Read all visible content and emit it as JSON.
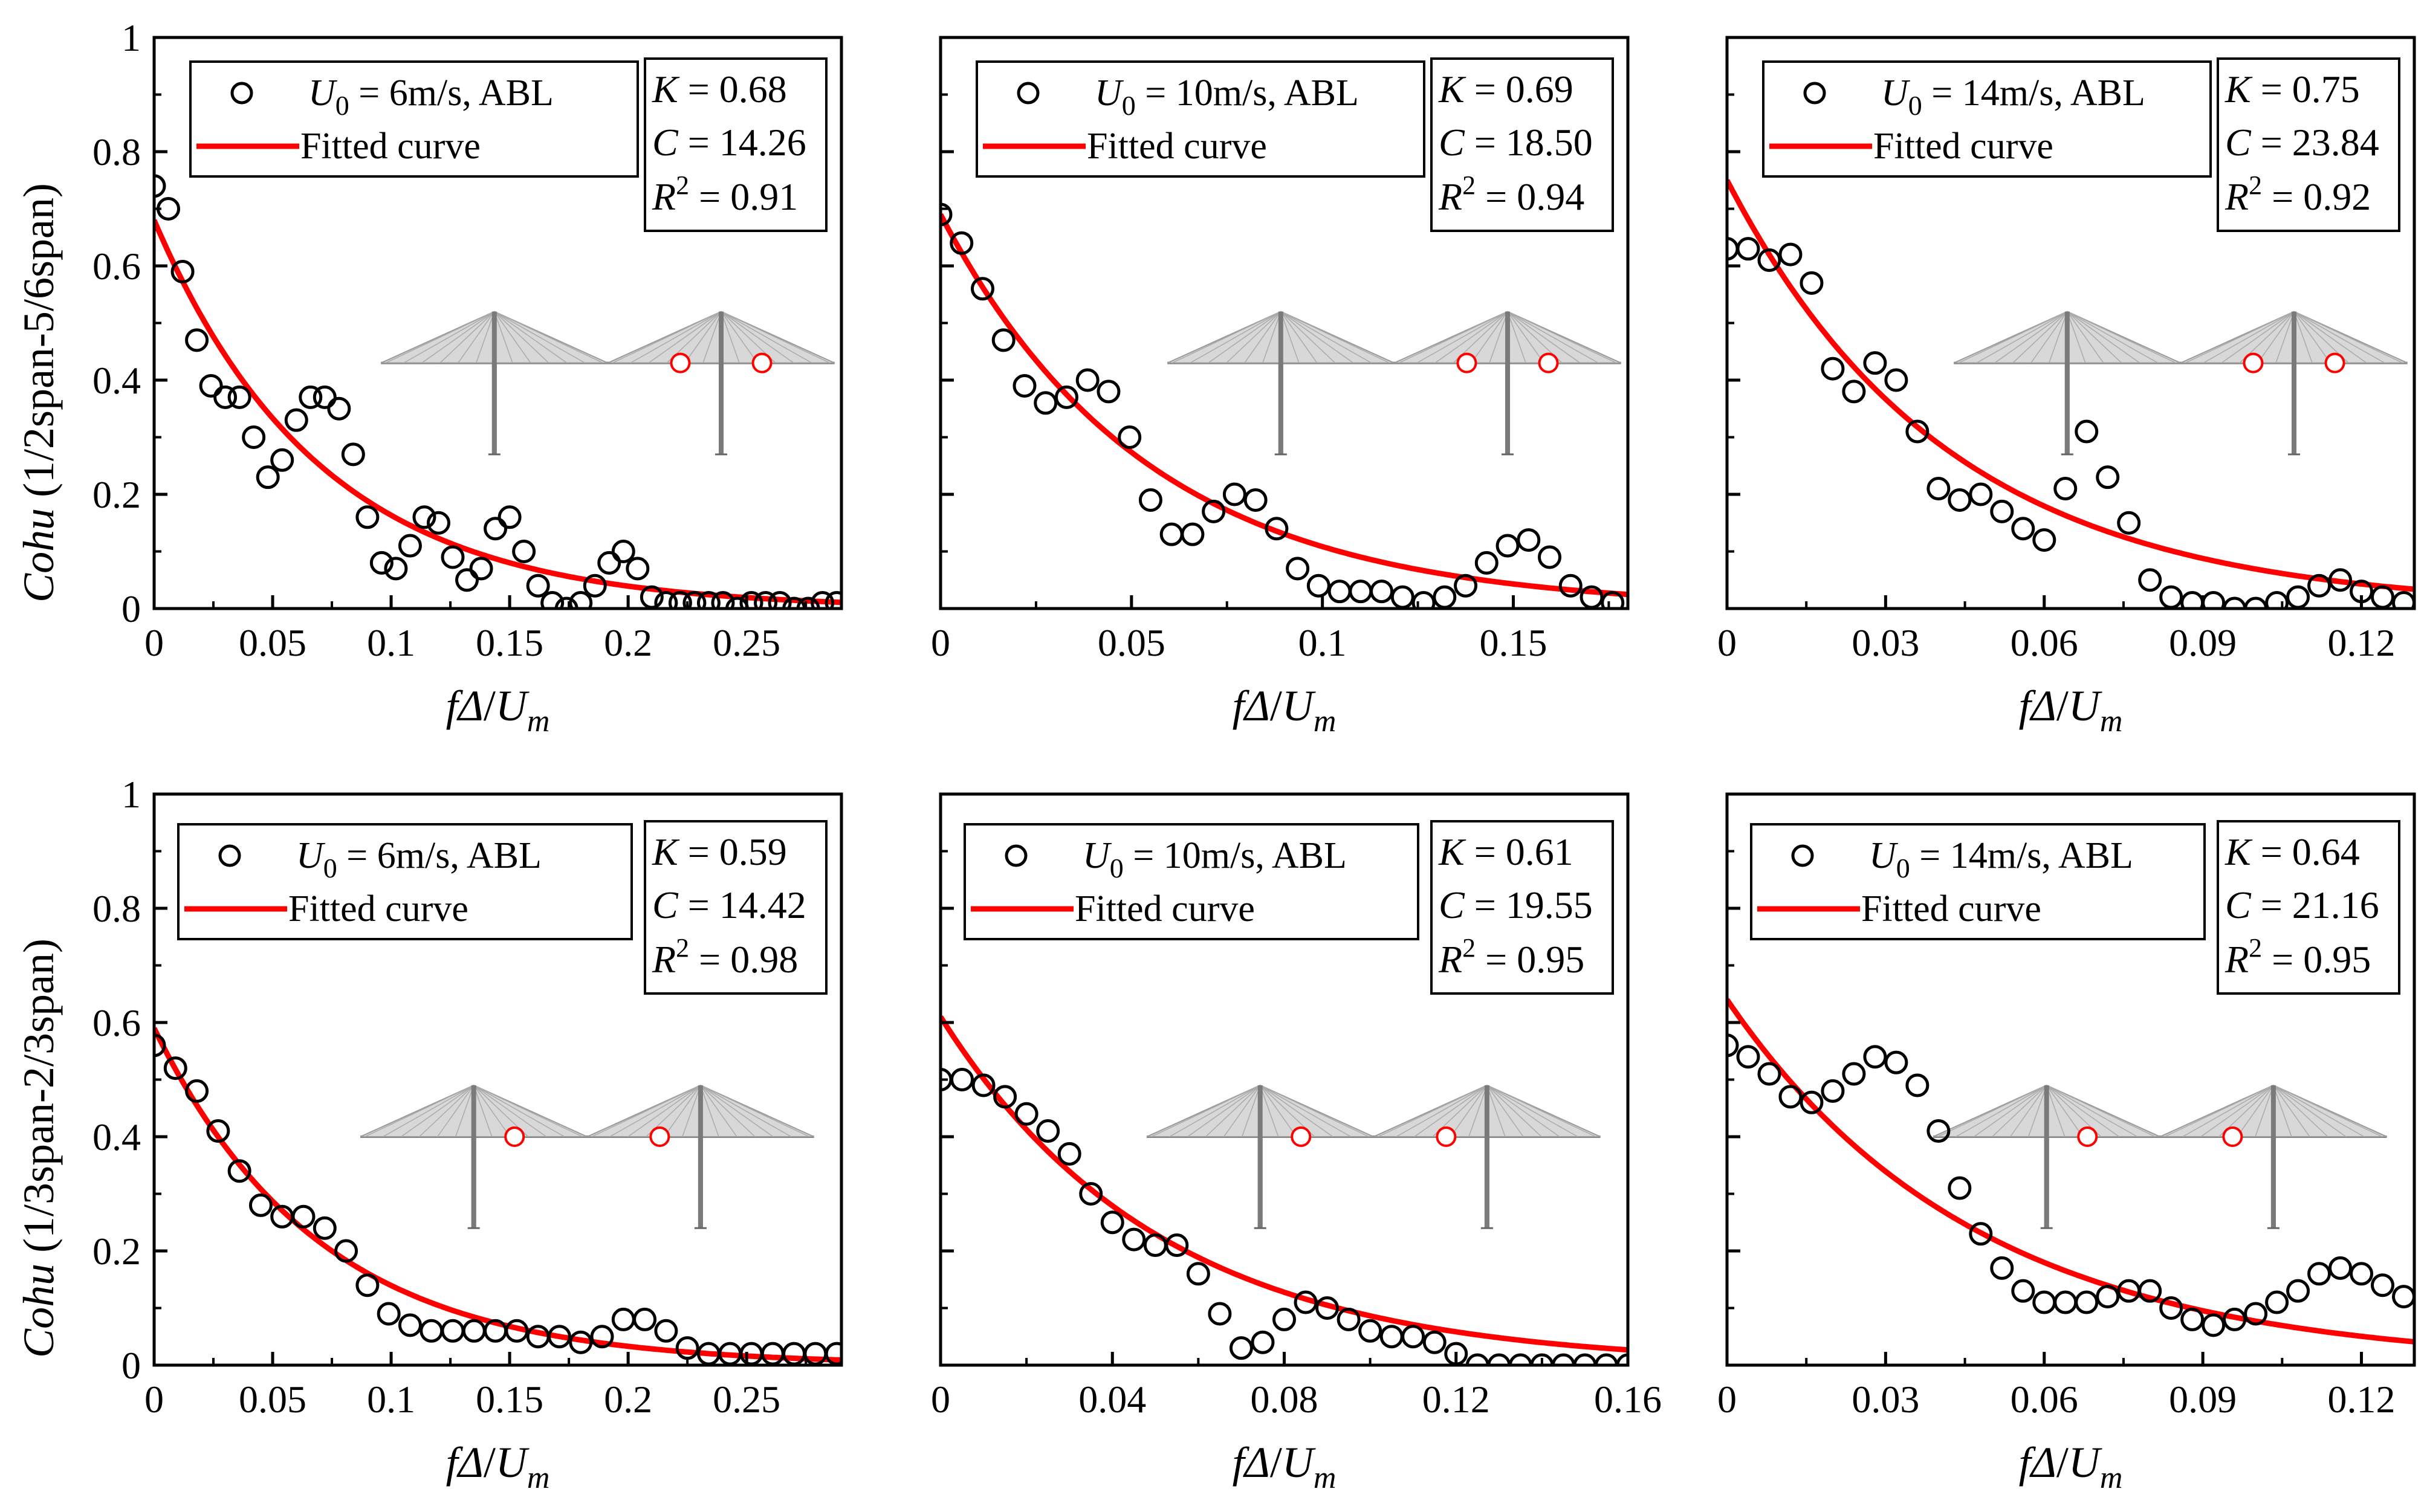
{
  "figure": {
    "xlabel": {
      "f": "f",
      "delta": "Δ",
      "slash": "/",
      "U": "U",
      "sub": "m"
    },
    "legend_marker_label": {
      "U": "U",
      "sub": "0"
    },
    "stat_labels": {
      "K": "K",
      "C": "C",
      "R": "R",
      "sup": "2"
    },
    "colors": {
      "fit": "#ff0000",
      "marker": "#000000",
      "sensor": "#ff0000",
      "bridge": "#9a9a9a"
    },
    "row_ylabels": [
      {
        "italic": "Cohu",
        "rest": " (1/2span-5/6span)"
      },
      {
        "italic": "Cohu",
        "rest": " (1/3span-2/3span)"
      }
    ]
  },
  "chart_data": [
    {
      "type": "scatter",
      "panel": "top-left",
      "legend": {
        "case": " = 6m/s, ABL",
        "fit": "Fitted curve"
      },
      "stats": {
        "K": " = 0.68",
        "C": " = 14.26",
        "R2": " = 0.91"
      },
      "xlim": [
        0,
        0.29
      ],
      "ylim": [
        0,
        1
      ],
      "xticks": [
        0,
        0.05,
        0.1,
        0.15,
        0.2,
        0.25
      ],
      "xtick_labels": [
        "0",
        "0.05",
        "0.1",
        "0.15",
        "0.2",
        "0.25"
      ],
      "yticks": [
        0,
        0.2,
        0.4,
        0.6,
        0.8,
        1
      ],
      "ytick_labels": [
        "0",
        "0.2",
        "0.4",
        "0.6",
        "0.8",
        "1"
      ],
      "fit": {
        "K": 0.68,
        "C": 14.26
      },
      "x": [
        0,
        0.006,
        0.012,
        0.018,
        0.024,
        0.03,
        0.036,
        0.042,
        0.048,
        0.054,
        0.06,
        0.066,
        0.072,
        0.078,
        0.084,
        0.09,
        0.096,
        0.102,
        0.108,
        0.114,
        0.12,
        0.126,
        0.132,
        0.138,
        0.144,
        0.15,
        0.156,
        0.162,
        0.168,
        0.174,
        0.18,
        0.186,
        0.192,
        0.198,
        0.204,
        0.21,
        0.216,
        0.222,
        0.228,
        0.234,
        0.24,
        0.246,
        0.252,
        0.258,
        0.264,
        0.27,
        0.276,
        0.282,
        0.288
      ],
      "y": [
        0.74,
        0.7,
        0.59,
        0.47,
        0.39,
        0.37,
        0.37,
        0.3,
        0.23,
        0.26,
        0.33,
        0.37,
        0.37,
        0.35,
        0.27,
        0.16,
        0.08,
        0.07,
        0.11,
        0.16,
        0.15,
        0.09,
        0.05,
        0.07,
        0.14,
        0.16,
        0.1,
        0.04,
        0.01,
        0.0,
        0.01,
        0.04,
        0.08,
        0.1,
        0.07,
        0.02,
        0.01,
        0.01,
        0.01,
        0.01,
        0.01,
        0.0,
        0.01,
        0.01,
        0.01,
        0.0,
        0.0,
        0.01,
        0.01
      ],
      "sensors": [
        0.66,
        0.84
      ]
    },
    {
      "type": "scatter",
      "panel": "top-middle",
      "legend": {
        "case": " = 10m/s, ABL",
        "fit": "Fitted curve"
      },
      "stats": {
        "K": " = 0.69",
        "C": " = 18.50",
        "R2": " = 0.94"
      },
      "xlim": [
        0,
        0.18
      ],
      "ylim": [
        0,
        1
      ],
      "xticks": [
        0,
        0.05,
        0.1,
        0.15
      ],
      "xtick_labels": [
        "0",
        "0.05",
        "0.1",
        "0.15"
      ],
      "yticks": [
        0,
        0.2,
        0.4,
        0.6,
        0.8,
        1
      ],
      "ytick_labels": [
        "",
        "",
        "",
        "",
        "",
        ""
      ],
      "fit": {
        "K": 0.69,
        "C": 18.5
      },
      "x": [
        0,
        0.0055,
        0.011,
        0.0165,
        0.022,
        0.0275,
        0.033,
        0.0385,
        0.044,
        0.0495,
        0.055,
        0.0605,
        0.066,
        0.0715,
        0.077,
        0.0825,
        0.088,
        0.0935,
        0.099,
        0.1045,
        0.11,
        0.1155,
        0.121,
        0.1265,
        0.132,
        0.1375,
        0.143,
        0.1485,
        0.154,
        0.1595,
        0.165,
        0.1705,
        0.176
      ],
      "y": [
        0.69,
        0.64,
        0.56,
        0.47,
        0.39,
        0.36,
        0.37,
        0.4,
        0.38,
        0.3,
        0.19,
        0.13,
        0.13,
        0.17,
        0.2,
        0.19,
        0.14,
        0.07,
        0.04,
        0.03,
        0.03,
        0.03,
        0.02,
        0.01,
        0.02,
        0.04,
        0.08,
        0.11,
        0.12,
        0.09,
        0.04,
        0.02,
        0.01
      ],
      "sensors": [
        0.66,
        0.84
      ]
    },
    {
      "type": "scatter",
      "panel": "top-right",
      "legend": {
        "case": " = 14m/s, ABL",
        "fit": "Fitted curve"
      },
      "stats": {
        "K": " = 0.75",
        "C": " = 23.84",
        "R2": " = 0.92"
      },
      "xlim": [
        0,
        0.13
      ],
      "ylim": [
        0,
        1
      ],
      "xticks": [
        0,
        0.03,
        0.06,
        0.09,
        0.12
      ],
      "xtick_labels": [
        "0",
        "0.03",
        "0.06",
        "0.09",
        "0.12"
      ],
      "yticks": [
        0,
        0.2,
        0.4,
        0.6,
        0.8,
        1
      ],
      "ytick_labels": [
        "",
        "",
        "",
        "",
        "",
        ""
      ],
      "fit": {
        "K": 0.75,
        "C": 23.84
      },
      "x": [
        0,
        0.004,
        0.008,
        0.012,
        0.016,
        0.02,
        0.024,
        0.028,
        0.032,
        0.036,
        0.04,
        0.044,
        0.048,
        0.052,
        0.056,
        0.06,
        0.064,
        0.068,
        0.072,
        0.076,
        0.08,
        0.084,
        0.088,
        0.092,
        0.096,
        0.1,
        0.104,
        0.108,
        0.112,
        0.116,
        0.12,
        0.124,
        0.128
      ],
      "y": [
        0.63,
        0.63,
        0.61,
        0.62,
        0.57,
        0.42,
        0.38,
        0.43,
        0.4,
        0.31,
        0.21,
        0.19,
        0.2,
        0.17,
        0.14,
        0.12,
        0.21,
        0.31,
        0.23,
        0.15,
        0.05,
        0.02,
        0.01,
        0.01,
        0.0,
        0.0,
        0.01,
        0.02,
        0.04,
        0.05,
        0.03,
        0.02,
        0.01
      ],
      "sensors": [
        0.66,
        0.84
      ]
    },
    {
      "type": "scatter",
      "panel": "bottom-left",
      "legend": {
        "case": " = 6m/s, ABL",
        "fit": "Fitted curve"
      },
      "stats": {
        "K": " = 0.59",
        "C": " = 14.42",
        "R2": " = 0.98"
      },
      "xlim": [
        0,
        0.29
      ],
      "ylim": [
        0,
        1
      ],
      "xticks": [
        0,
        0.05,
        0.1,
        0.15,
        0.2,
        0.25
      ],
      "xtick_labels": [
        "0",
        "0.05",
        "0.1",
        "0.15",
        "0.2",
        "0.25"
      ],
      "yticks": [
        0,
        0.2,
        0.4,
        0.6,
        0.8,
        1
      ],
      "ytick_labels": [
        "0",
        "0.2",
        "0.4",
        "0.6",
        "0.8",
        "1"
      ],
      "fit": {
        "K": 0.59,
        "C": 14.42
      },
      "x": [
        0,
        0.009,
        0.018,
        0.027,
        0.036,
        0.045,
        0.054,
        0.063,
        0.072,
        0.081,
        0.09,
        0.099,
        0.108,
        0.117,
        0.126,
        0.135,
        0.144,
        0.153,
        0.162,
        0.171,
        0.18,
        0.189,
        0.198,
        0.207,
        0.216,
        0.225,
        0.234,
        0.243,
        0.252,
        0.261,
        0.27,
        0.279,
        0.288
      ],
      "y": [
        0.56,
        0.52,
        0.48,
        0.41,
        0.34,
        0.28,
        0.26,
        0.26,
        0.24,
        0.2,
        0.14,
        0.09,
        0.07,
        0.06,
        0.06,
        0.06,
        0.06,
        0.06,
        0.05,
        0.05,
        0.04,
        0.05,
        0.08,
        0.08,
        0.06,
        0.03,
        0.02,
        0.02,
        0.02,
        0.02,
        0.02,
        0.02,
        0.02
      ],
      "sensors": [
        0.34,
        0.66
      ]
    },
    {
      "type": "scatter",
      "panel": "bottom-middle",
      "legend": {
        "case": " = 10m/s, ABL",
        "fit": "Fitted curve"
      },
      "stats": {
        "K": " = 0.61",
        "C": " = 19.55",
        "R2": " = 0.95"
      },
      "xlim": [
        0,
        0.16
      ],
      "ylim": [
        0,
        1
      ],
      "xticks": [
        0,
        0.04,
        0.08,
        0.12,
        0.16
      ],
      "xtick_labels": [
        "0",
        "0.04",
        "0.08",
        "0.12",
        "0.16"
      ],
      "yticks": [
        0,
        0.2,
        0.4,
        0.6,
        0.8,
        1
      ],
      "ytick_labels": [
        "",
        "",
        "",
        "",
        "",
        ""
      ],
      "fit": {
        "K": 0.61,
        "C": 19.55
      },
      "x": [
        0,
        0.005,
        0.01,
        0.015,
        0.02,
        0.025,
        0.03,
        0.035,
        0.04,
        0.045,
        0.05,
        0.055,
        0.06,
        0.065,
        0.07,
        0.075,
        0.08,
        0.085,
        0.09,
        0.095,
        0.1,
        0.105,
        0.11,
        0.115,
        0.12,
        0.125,
        0.13,
        0.135,
        0.14,
        0.145,
        0.15,
        0.155,
        0.16
      ],
      "y": [
        0.5,
        0.5,
        0.49,
        0.47,
        0.44,
        0.41,
        0.37,
        0.3,
        0.25,
        0.22,
        0.21,
        0.21,
        0.16,
        0.09,
        0.03,
        0.04,
        0.08,
        0.11,
        0.1,
        0.08,
        0.06,
        0.05,
        0.05,
        0.04,
        0.02,
        0.0,
        0.0,
        0.0,
        0.0,
        0.0,
        0.0,
        0.0,
        0.0
      ],
      "sensors": [
        0.34,
        0.66
      ]
    },
    {
      "type": "scatter",
      "panel": "bottom-right",
      "legend": {
        "case": " = 14m/s, ABL",
        "fit": "Fitted curve"
      },
      "stats": {
        "K": " = 0.64",
        "C": " = 21.16",
        "R2": " = 0.95"
      },
      "xlim": [
        0,
        0.13
      ],
      "ylim": [
        0,
        1
      ],
      "xticks": [
        0,
        0.03,
        0.06,
        0.09,
        0.12
      ],
      "xtick_labels": [
        "0",
        "0.03",
        "0.06",
        "0.09",
        "0.12"
      ],
      "yticks": [
        0,
        0.2,
        0.4,
        0.6,
        0.8,
        1
      ],
      "ytick_labels": [
        "",
        "",
        "",
        "",
        "",
        ""
      ],
      "fit": {
        "K": 0.64,
        "C": 21.16
      },
      "x": [
        0,
        0.004,
        0.008,
        0.012,
        0.016,
        0.02,
        0.024,
        0.028,
        0.032,
        0.036,
        0.04,
        0.044,
        0.048,
        0.052,
        0.056,
        0.06,
        0.064,
        0.068,
        0.072,
        0.076,
        0.08,
        0.084,
        0.088,
        0.092,
        0.096,
        0.1,
        0.104,
        0.108,
        0.112,
        0.116,
        0.12,
        0.124,
        0.128
      ],
      "y": [
        0.56,
        0.54,
        0.51,
        0.47,
        0.46,
        0.48,
        0.51,
        0.54,
        0.53,
        0.49,
        0.41,
        0.31,
        0.23,
        0.17,
        0.13,
        0.11,
        0.11,
        0.11,
        0.12,
        0.13,
        0.13,
        0.1,
        0.08,
        0.07,
        0.08,
        0.09,
        0.11,
        0.13,
        0.16,
        0.17,
        0.16,
        0.14,
        0.12
      ],
      "sensors": [
        0.34,
        0.66
      ]
    }
  ]
}
